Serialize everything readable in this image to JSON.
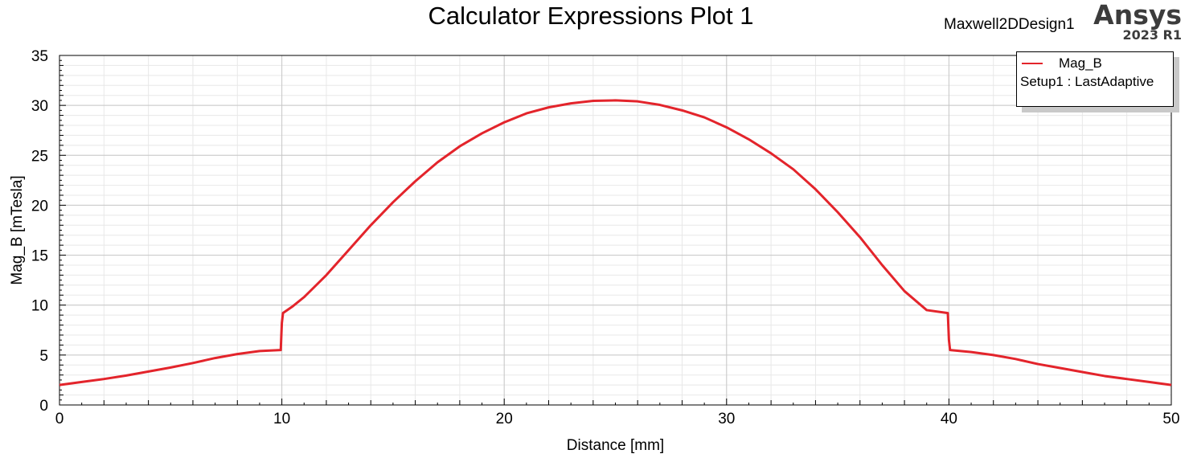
{
  "header": {
    "title": "Calculator Expressions Plot 1",
    "design_name": "Maxwell2DDesign1",
    "brand": "Ansys",
    "version": "2023 R1"
  },
  "legend": {
    "series_label": "Mag_B",
    "setup_label": "Setup1 : LastAdaptive",
    "placement": "top-right"
  },
  "colors": {
    "series": "#e3242b",
    "grid_major": "#c8c8c8",
    "grid_minor": "#e8e8e8"
  },
  "chart_data": {
    "type": "line",
    "xlabel": "Distance [mm]",
    "ylabel": "Mag_B [mTesla]",
    "xlim": [
      0,
      50
    ],
    "ylim": [
      0,
      35
    ],
    "x_ticks": [
      0,
      10,
      20,
      30,
      40,
      50
    ],
    "y_ticks": [
      0,
      5,
      10,
      15,
      20,
      25,
      30,
      35
    ],
    "grid": true,
    "series": [
      {
        "name": "Mag_B",
        "x": [
          0,
          1,
          2,
          3,
          4,
          5,
          6,
          7,
          8,
          9,
          9.95,
          10.0,
          10.05,
          10.5,
          11,
          12,
          13,
          14,
          15,
          16,
          17,
          18,
          19,
          20,
          21,
          22,
          23,
          24,
          25,
          26,
          27,
          28,
          29,
          30,
          31,
          32,
          33,
          34,
          35,
          36,
          37,
          38,
          39,
          39.95,
          40.0,
          40.05,
          41,
          42,
          43,
          44,
          45,
          46,
          47,
          48,
          49,
          50
        ],
        "y": [
          2.0,
          2.3,
          2.6,
          2.95,
          3.35,
          3.75,
          4.2,
          4.7,
          5.1,
          5.4,
          5.5,
          8.2,
          9.2,
          9.9,
          10.8,
          13.0,
          15.5,
          18.0,
          20.3,
          22.4,
          24.3,
          25.9,
          27.2,
          28.3,
          29.2,
          29.8,
          30.2,
          30.45,
          30.5,
          30.4,
          30.05,
          29.5,
          28.8,
          27.8,
          26.6,
          25.2,
          23.6,
          21.6,
          19.3,
          16.8,
          14.0,
          11.4,
          9.5,
          9.2,
          6.5,
          5.5,
          5.3,
          5.0,
          4.6,
          4.1,
          3.7,
          3.3,
          2.9,
          2.6,
          2.3,
          2.0
        ]
      }
    ]
  }
}
